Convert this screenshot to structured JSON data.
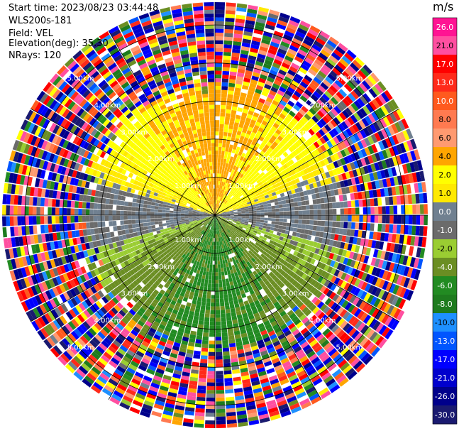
{
  "header": {
    "start_time": "Start time: 2023/08/23 03:44:48",
    "instrument": "WLS200s-181",
    "field": "Field: VEL",
    "elevation": "Elevation(deg): 35.30",
    "nrays": "NRays: 120"
  },
  "chart_data": {
    "type": "heatmap",
    "projection": "polar-ppi",
    "nrays": 120,
    "range_rings_km": [
      1.0,
      2.0,
      3.0,
      4.0,
      5.0
    ],
    "ring_labels": [
      "1.00km",
      "2.00km",
      "3.00km",
      "4.00km",
      "5.00km"
    ],
    "colorbar": {
      "unit": "m/s",
      "ticks": [
        "26.0",
        "21.0",
        "17.0",
        "13.0",
        "10.0",
        "8.0",
        "6.0",
        "4.0",
        "2.0",
        "1.0",
        "0.0",
        "-1.0",
        "-2.0",
        "-4.0",
        "-6.0",
        "-8.0",
        "-10.0",
        "-13.0",
        "-17.0",
        "-21.0",
        "-26.0",
        "-30.0"
      ],
      "colors": [
        "#ff1493",
        "#ff4fa0",
        "#ff0000",
        "#ff2a1a",
        "#ff5a1e",
        "#ff7a50",
        "#ff9a70",
        "#ffa500",
        "#ffff00",
        "#ffe900",
        "#708090",
        "#6b6b6b",
        "#9acd32",
        "#6b8e23",
        "#228b22",
        "#1e7b1e",
        "#1e90ff",
        "#0055ff",
        "#0000ff",
        "#0000cd",
        "#00008b",
        "#1a1a70"
      ]
    }
  }
}
